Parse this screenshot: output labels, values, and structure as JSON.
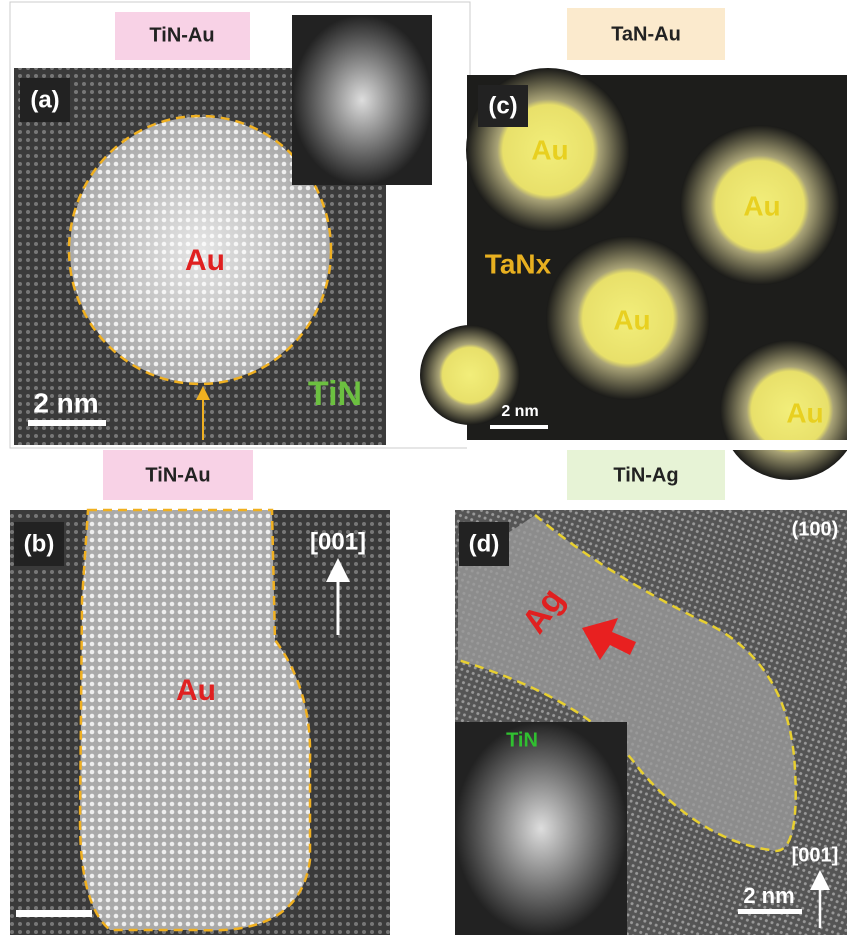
{
  "panels": {
    "a": {
      "header": "TiN-Au",
      "label": "(a)",
      "particle": "Au",
      "matrix": "TiN",
      "scale_bar": "2 nm"
    },
    "c": {
      "header": "TaN-Au",
      "label": "(c)",
      "particles": [
        "Au",
        "Au",
        "Au",
        "Au"
      ],
      "matrix": "TaNx",
      "scale_bar": "2 nm"
    },
    "b": {
      "header": "TiN-Au",
      "label": "(b)",
      "direction": "[001]",
      "particle": "Au"
    },
    "d": {
      "header": "TiN-Ag",
      "label": "(d)",
      "plane": "(100)",
      "particle": "Ag",
      "matrix": "TiN",
      "direction": "[001]",
      "scale_bar": "2 nm"
    }
  }
}
